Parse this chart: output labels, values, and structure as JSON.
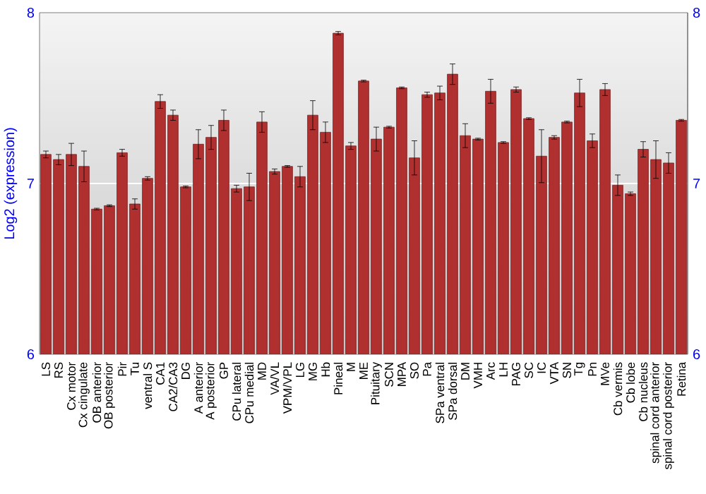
{
  "chart_data": {
    "type": "bar",
    "ylabel": "Log2 (expression)",
    "categories": [
      "LS",
      "RS",
      "Cx motor",
      "Cx cingulate",
      "OB anterior",
      "OB posterior",
      "Pir",
      "Tu",
      "ventral S",
      "CA1",
      "CA2/CA3",
      "DG",
      "A anterior",
      "A posterior",
      "GP",
      "CPu lateral",
      "CPu medial",
      "MD",
      "VA/VL",
      "VPM/VPL",
      "LG",
      "MG",
      "Hb",
      "Pineal",
      "M",
      "ME",
      "Pituitary",
      "SCN",
      "MPA",
      "SO",
      "Pa",
      "SPa ventral",
      "SPa dorsal",
      "DM",
      "VMH",
      "Arc",
      "LH",
      "PAG",
      "SC",
      "IC",
      "VTA",
      "SN",
      "Tg",
      "Pn",
      "MVe",
      "Cb vermis",
      "Cb lobe",
      "Cb nucleus",
      "spinal cord anterior",
      "spinal cord posterior",
      "Retina"
    ],
    "values": [
      7.17,
      7.14,
      7.17,
      7.1,
      6.85,
      6.87,
      7.18,
      6.88,
      7.03,
      7.48,
      7.4,
      6.98,
      7.23,
      7.27,
      7.37,
      6.97,
      6.98,
      7.36,
      7.07,
      7.1,
      7.04,
      7.4,
      7.3,
      7.88,
      7.22,
      7.6,
      7.26,
      7.33,
      7.56,
      7.15,
      7.52,
      7.53,
      7.64,
      7.28,
      7.26,
      7.54,
      7.24,
      7.55,
      7.38,
      7.16,
      7.27,
      7.36,
      7.53,
      7.25,
      7.55,
      6.99,
      6.94,
      7.2,
      7.14,
      7.12,
      7.37
    ],
    "errors": [
      0.02,
      0.03,
      0.065,
      0.09,
      0.005,
      0.005,
      0.02,
      0.03,
      0.01,
      0.04,
      0.03,
      0.005,
      0.085,
      0.07,
      0.06,
      0.02,
      0.08,
      0.06,
      0.015,
      0.005,
      0.06,
      0.085,
      0.06,
      0.01,
      0.02,
      0.005,
      0.07,
      0.005,
      0.005,
      0.1,
      0.015,
      0.04,
      0.06,
      0.07,
      0.005,
      0.07,
      0.005,
      0.015,
      0.005,
      0.155,
      0.01,
      0.005,
      0.08,
      0.04,
      0.035,
      0.06,
      0.01,
      0.045,
      0.11,
      0.06,
      0.005
    ],
    "color": "#b03030",
    "ylim": [
      6,
      8
    ],
    "yticks": [
      6,
      7,
      8
    ],
    "y2lim": [
      6,
      8
    ],
    "y2ticks": [
      6,
      7,
      8
    ],
    "grid": "y"
  }
}
